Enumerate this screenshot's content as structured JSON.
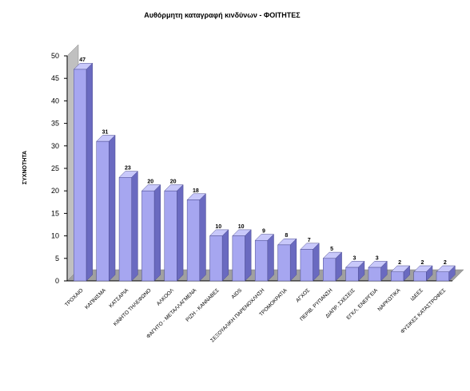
{
  "chart_data": {
    "type": "bar",
    "title": "Αυθόρμητη καταγραφή κινδύνων - ΦΟΙΤΗΤΕΣ",
    "xlabel": "",
    "ylabel": "ΣΥΧΝΟΤΗΤΑ",
    "ylim": [
      0,
      50
    ],
    "yticks": [
      0,
      5,
      10,
      15,
      20,
      25,
      30,
      35,
      40,
      45,
      50
    ],
    "grid": false,
    "legend": "none",
    "style": "3d",
    "bar_color": "#a6a6f0",
    "wall_color": "#c0c0c0",
    "categories": [
      "ΤΡΟΧΑΙΟ",
      "ΚΑΠΝΙΣΜΑ",
      "ΚΑΤΣΑΡΙΑ",
      "ΚΙΝΗΤΟ ΤΗΛΕΦΩΝΟ",
      "ΑΛΚΟΟΛ",
      "ΦΑΓΗΤΟ - ΜΕΤΑΛΛΑΓΜΕΝΑ",
      "ΡΙΖΗ - ΚΑΝΝΑΒΕΣ",
      "AIDS",
      "ΣΕΞΟΥΑΛΙΚΗ ΠΑΡΕΝΟΧΛΗΣΗ",
      "ΤΡΟΜΟΚΡΑΤΙΑ",
      "ΑΓΧΟΣ",
      "ΠΕΡΙΒ. ΡΥΠΑΝΣΗ",
      "ΔΙΑΠΡ. ΣΧΕΣΕΙΣ",
      "ΕΓΚΛ. ΕΝΕΡΓΕΙΑ",
      "ΝΑΡΚΩΤΙΚΑ",
      "ΙΔΕΕΣ",
      "ΦΥΣΙΚΕΣ ΚΑΤΑΣΤΡΟΦΕΣ"
    ],
    "values": [
      47,
      31,
      23,
      20,
      20,
      18,
      10,
      10,
      9,
      8,
      7,
      5,
      3,
      3,
      2,
      2,
      2
    ],
    "value_labels": [
      "47",
      "31",
      "23",
      "20",
      "20",
      "18",
      "10",
      "10",
      "9",
      "8",
      "7",
      "5",
      "3",
      "3",
      "2",
      "2",
      "2"
    ]
  }
}
